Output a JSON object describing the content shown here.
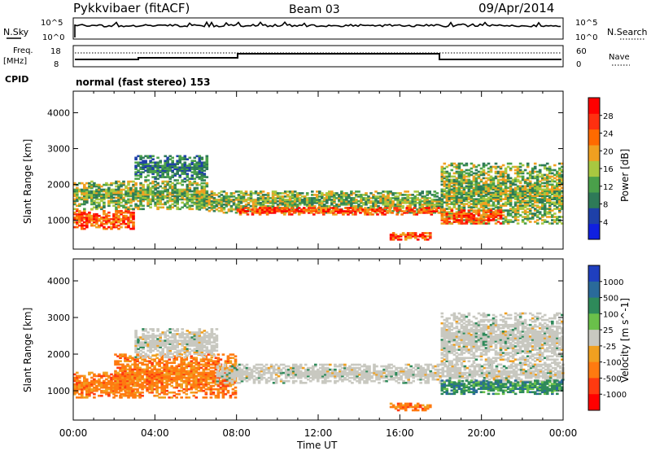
{
  "header": {
    "station": "Pykkvibaer (fitACF)",
    "beam": "Beam 03",
    "date": "09/Apr/2014"
  },
  "nsky_panel": {
    "left_label": "N.Sky",
    "left_ticks": [
      "10^5",
      "10^0"
    ],
    "right_label": "N.Search",
    "right_ticks": [
      "10^5",
      "10^0"
    ]
  },
  "freq_panel": {
    "left_label_line1": "Freq.",
    "left_label_line2": "[MHz]",
    "left_ticks": [
      "18",
      "8"
    ],
    "right_label": "Nave",
    "right_ticks": [
      "60",
      "0"
    ]
  },
  "cpid_panel": {
    "label": "CPID",
    "text": "normal (fast stereo) 153"
  },
  "time_axis": {
    "ticks": [
      "00:00",
      "04:00",
      "08:00",
      "12:00",
      "16:00",
      "20:00",
      "00:00"
    ],
    "label": "Time UT"
  },
  "colors": {
    "power": [
      "#1020e0",
      "#1e40a8",
      "#2e7a58",
      "#4aa04a",
      "#a8c840",
      "#f0a020",
      "#ff6a00",
      "#ff3010",
      "#ff0000"
    ],
    "velocity": [
      "#1f3fbf",
      "#2a6a9a",
      "#2e8a5a",
      "#6ac04a",
      "#c8c8c0",
      "#f0a020",
      "#ff7a10",
      "#ff3a10",
      "#ff0000"
    ]
  },
  "chart_data": [
    {
      "type": "heatmap",
      "title": "",
      "xlabel": "",
      "ylabel": "Slant Range [km]",
      "y_ticks": [
        "1000",
        "2000",
        "3000",
        "4000"
      ],
      "ylim": [
        200,
        4600
      ],
      "xlim": [
        0,
        24
      ],
      "colorbar_label": "Power [dB]",
      "colorbar_ticks": [
        "4",
        "8",
        "12",
        "16",
        "20",
        "24",
        "28"
      ],
      "bands": [
        {
          "t0": 0.0,
          "t1": 3.0,
          "r0": 750,
          "r1": 1300,
          "value": "strong"
        },
        {
          "t0": 0.0,
          "t1": 6.5,
          "r0": 1300,
          "r1": 2100,
          "value": "medium"
        },
        {
          "t0": 3.0,
          "t1": 6.5,
          "r0": 2100,
          "r1": 2800,
          "value": "weak"
        },
        {
          "t0": 6.0,
          "t1": 18.0,
          "r0": 1200,
          "r1": 1800,
          "value": "medium"
        },
        {
          "t0": 8.0,
          "t1": 18.0,
          "r0": 1150,
          "r1": 1350,
          "value": "strong"
        },
        {
          "t0": 15.5,
          "t1": 17.5,
          "r0": 450,
          "r1": 650,
          "value": "strong"
        },
        {
          "t0": 18.0,
          "t1": 24.0,
          "r0": 900,
          "r1": 2600,
          "value": "medium"
        },
        {
          "t0": 18.0,
          "t1": 21.0,
          "r0": 900,
          "r1": 1300,
          "value": "strong"
        }
      ]
    },
    {
      "type": "heatmap",
      "title": "",
      "xlabel": "Time UT",
      "ylabel": "Slant Range [km]",
      "y_ticks": [
        "1000",
        "2000",
        "3000",
        "4000"
      ],
      "ylim": [
        200,
        4600
      ],
      "xlim": [
        0,
        24
      ],
      "colorbar_label": "Velocity [m s^-1]",
      "colorbar_ticks": [
        "1000",
        "500",
        "100",
        "25",
        "-25",
        "-100",
        "-500",
        "-1000"
      ],
      "bands": [
        {
          "t0": 0.0,
          "t1": 3.0,
          "r0": 800,
          "r1": 1500,
          "value": "away"
        },
        {
          "t0": 2.0,
          "t1": 8.0,
          "r0": 800,
          "r1": 2000,
          "value": "away"
        },
        {
          "t0": 3.0,
          "t1": 7.0,
          "r0": 1900,
          "r1": 2700,
          "value": "near-zero"
        },
        {
          "t0": 7.0,
          "t1": 24.0,
          "r0": 1200,
          "r1": 1700,
          "value": "near-zero"
        },
        {
          "t0": 15.5,
          "t1": 17.5,
          "r0": 450,
          "r1": 650,
          "value": "away"
        },
        {
          "t0": 18.0,
          "t1": 24.0,
          "r0": 900,
          "r1": 1300,
          "value": "toward"
        },
        {
          "t0": 18.0,
          "t1": 24.0,
          "r0": 1700,
          "r1": 3100,
          "value": "near-zero"
        }
      ]
    }
  ]
}
